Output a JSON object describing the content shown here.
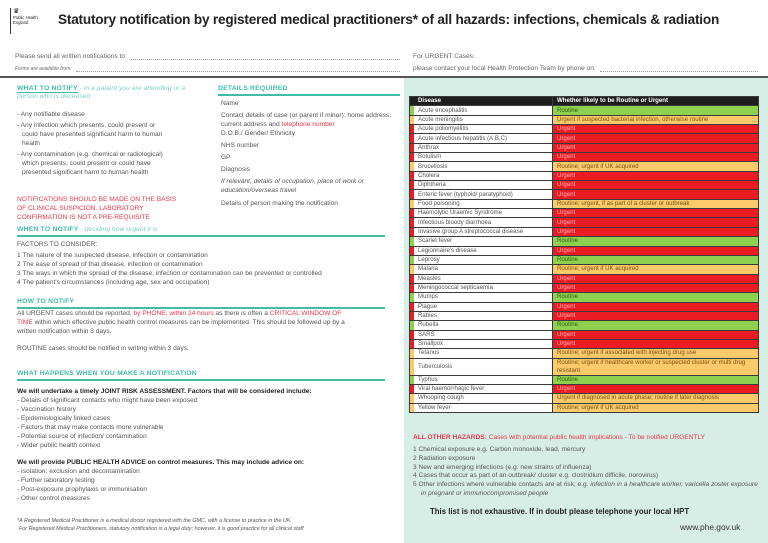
{
  "header": {
    "logo_text": "Public Health England",
    "title": "Statutory notification by registered medical practitioners* of all hazards: infections, chemicals & radiation"
  },
  "send_to": "Please send all written notifications to:",
  "forms_from": "Forms are available from:",
  "urgent": {
    "label": "For URGENT Cases:",
    "contact": "please contact your local Health Protection Team by phone on:"
  },
  "what_to_notify": {
    "title": "WHAT TO NOTIFY",
    "subtitle": "- in a patient you are attending or a person who is deceased",
    "items": [
      "- Any notifiable disease",
      "- Any infection which presents, could present or could have presented significant harm to human health",
      "- Any contamination (e.g. chemical or radiological) which presents, could present or could have presented significant harm to human health"
    ],
    "warning": "NOTIFICATIONS SHOULD BE MADE ON THE BASIS OF CLINICAL SUSPICION. LABORATORY CONFIRMATION IS NOT A PRE-REQUISITE"
  },
  "details_required": {
    "title": "DETAILS REQUIRED",
    "name": "Name",
    "contact_a": "Contact details of case (or parent if minor): home address, current address and ",
    "contact_red": "telephone number",
    "dob": "D.O.B./ Gender/ Ethnicity",
    "nhs": "NHS number",
    "gp": "GP",
    "diagnosis": "Diagnosis",
    "relevant": "If relevant, details of occupation, place of work or education/overseas travel",
    "person": "Details of person making the notification"
  },
  "when_to_notify": {
    "title": "WHEN TO NOTIFY",
    "subtitle": "- deciding how urgent it is",
    "factors": "FACTORS TO CONSIDER:",
    "items": [
      "1  The nature of the suspected disease, infection or contamination",
      "2  The ease of spread of that disease, infection or contamination",
      "3  The ways in which the spread of the disease, infection or contamination can be prevented or controlled",
      "4  The patient's circumstances (including age, sex and occupation)"
    ]
  },
  "how_to_notify": {
    "title": "HOW TO NOTIFY",
    "p1a": "All URGENT cases should be reported, ",
    "p1b": "by PHONE, within 24 hours",
    "p1c": " as there is often a ",
    "p1d": "CRITICAL WINDOW OF TIME",
    "p1e": " within which effective public health control measures can be implemented. This should be followed up by a written notification within 3 days.",
    "p2": "ROUTINE cases should be notified in writing within 3 days."
  },
  "what_happens": {
    "title": "WHAT HAPPENS WHEN YOU MAKE A NOTIFICATION",
    "risk_title": "We will undertake a timely JOINT RISK ASSESSMENT. Factors that will be considered include:",
    "risk_items": [
      "- Details of significant contacts who might have been exposed",
      "- Vaccination history",
      "- Epidemiologically linked cases",
      "- Factors that may make contacts more vulnerable",
      "- Potential source of infection/ contamination",
      "- Wider public health context"
    ],
    "advice_title": "We will provide PUBLIC HEALTH ADVICE on control measures. This may include advice on:",
    "advice_items": [
      "- Isolation; exclusion and decontamination",
      "- Further laboratory testing",
      "- Post-exposure prophylaxis or immunisation",
      "- Other control measures"
    ]
  },
  "footnote": [
    "*A Registered Medical Practitioner is a medical doctor registered with the GMC, with a license to practice in the UK.",
    "For Registered Medical Practitioners, statutory notification is a legal duty; however, it is good practice for all clinical staff"
  ],
  "colors": {
    "Green": "#8fd14f",
    "Amber": "#fcc96b",
    "Red": "#ec1c24",
    "heading": "#3fbcaa",
    "panel": "#d7eee6"
  },
  "table": {
    "headers": [
      "Disease",
      "Whether likely to be Routine or Urgent"
    ],
    "rows": [
      {
        "disease": "Acute encephalitis",
        "status": "Routine",
        "level": "Green"
      },
      {
        "disease": "Acute meningitis",
        "status": "Urgent if suspected bacterial infection, otherwise routine",
        "level": "Amber"
      },
      {
        "disease": "Acute poliomyelitis",
        "status": "Urgent",
        "level": "Red"
      },
      {
        "disease": "Acute infectious hepatitis (A,B,C)",
        "status": "Urgent",
        "level": "Red"
      },
      {
        "disease": "Anthrax",
        "status": "Urgent",
        "level": "Red"
      },
      {
        "disease": "Botulism",
        "status": "Urgent",
        "level": "Red"
      },
      {
        "disease": "Brucellosis",
        "status": "Routine; urgent if UK acquired",
        "level": "Amber"
      },
      {
        "disease": "Cholera",
        "status": "Urgent",
        "level": "Red"
      },
      {
        "disease": "Diphtheria",
        "status": "Urgent",
        "level": "Red"
      },
      {
        "disease": "Enteric fever (typhoid/ paratyphoid)",
        "status": "Urgent",
        "level": "Red"
      },
      {
        "disease": "Food poisoning",
        "status": "Routine; urgent, if as part of a cluster or outbreak",
        "level": "Amber"
      },
      {
        "disease": "Haemolytic Uraemic Syndrome",
        "status": "Urgent",
        "level": "Red"
      },
      {
        "disease": "Infectious bloody diarrhoea",
        "status": "Urgent",
        "level": "Red"
      },
      {
        "disease": "Invasive group A streptococcal disease",
        "status": "Urgent",
        "level": "Red"
      },
      {
        "disease": "Scarlet fever",
        "status": "Routine",
        "level": "Green"
      },
      {
        "disease": "Legionnaire's disease",
        "status": "Urgent",
        "level": "Red"
      },
      {
        "disease": "Leprosy",
        "status": "Routine",
        "level": "Green"
      },
      {
        "disease": "Malaria",
        "status": "Routine; urgent if UK acquired",
        "level": "Amber"
      },
      {
        "disease": "Measles",
        "status": "Urgent",
        "level": "Red"
      },
      {
        "disease": "Meningococcal septicaemia",
        "status": "Urgent",
        "level": "Red"
      },
      {
        "disease": "Mumps",
        "status": "Routine",
        "level": "Green"
      },
      {
        "disease": "Plague",
        "status": "Urgent",
        "level": "Red"
      },
      {
        "disease": "Rabies",
        "status": "Urgent",
        "level": "Red"
      },
      {
        "disease": "Rubella",
        "status": "Routine",
        "level": "Green"
      },
      {
        "disease": "SARS",
        "status": "Urgent",
        "level": "Red"
      },
      {
        "disease": "Smallpox",
        "status": "Urgent",
        "level": "Red"
      },
      {
        "disease": "Tetanus",
        "status": "Routine; urgent if associated with injecting drug use",
        "level": "Amber"
      },
      {
        "disease": "Tuberculosis",
        "status": "Routine; urgent if healthcare worker or suspected cluster or multi drug resistant",
        "level": "Amber"
      },
      {
        "disease": "Typhus",
        "status": "Routine",
        "level": "Green"
      },
      {
        "disease": "Viral haemorrhagic fever",
        "status": "Urgent",
        "level": "Red"
      },
      {
        "disease": "Whooping cough",
        "status": "Urgent if diagnosed in acute phase; routine if later diagnosis",
        "level": "Amber"
      },
      {
        "disease": "Yellow fever",
        "status": "Routine; urgent if UK acquired",
        "level": "Amber"
      }
    ]
  },
  "other_hazards": {
    "title": "ALL OTHER HAZARDS:",
    "subtitle": " Cases with potential public health implications - To be notified URGENTLY",
    "items": [
      "1  Chemical exposure e.g. Carbon monoxide, lead, mercury",
      "2  Radiation exposure",
      "3  New and emerging infections (e.g. new strains of influenza)",
      "4  Cases that occur as part of an outbreak/ cluster e.g. clostridium difficile, norovirus)"
    ],
    "item5a": "5  Other infections where vulnerable contacts are at risk; e.g. ",
    "item5b": "infection in a healthcare worker, varicella zoster exposure in pregnant or immunocompromised people"
  },
  "closing": "This list is not exhaustive. If in doubt please telephone your local HPT",
  "website": "www.phe.gov.uk"
}
